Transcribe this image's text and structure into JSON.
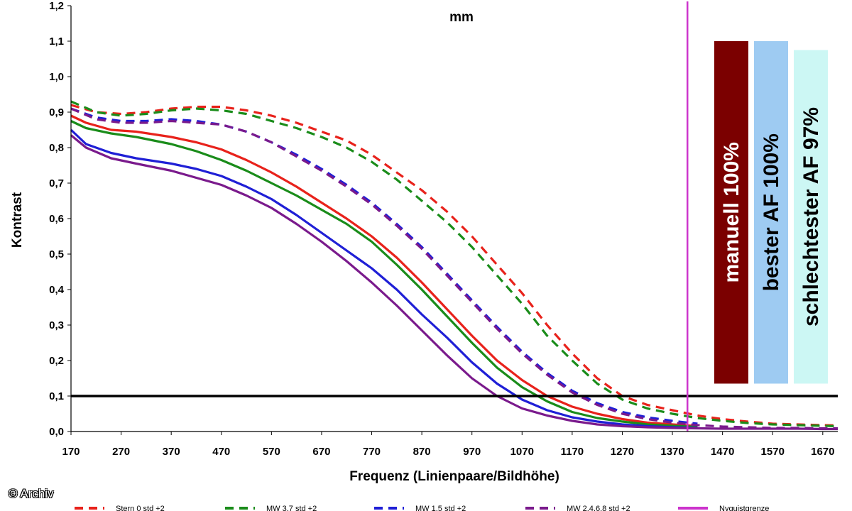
{
  "credit": "© Archiv",
  "chart_data": {
    "type": "line",
    "title": "mm",
    "xlabel": "Frequenz (Linienpaare/Bildhöhe)",
    "ylabel": "Kontrast",
    "xlim": [
      170,
      1700
    ],
    "ylim": [
      0.0,
      1.2
    ],
    "xticks": [
      "170",
      "270",
      "370",
      "470",
      "570",
      "670",
      "770",
      "870",
      "970",
      "1070",
      "1170",
      "1270",
      "1370",
      "1470",
      "1570",
      "1670"
    ],
    "yticks": [
      "0,0",
      "0,1",
      "0,2",
      "0,3",
      "0,4",
      "0,5",
      "0,6",
      "0,7",
      "0,8",
      "0,9",
      "1,0",
      "1,1",
      "1,2"
    ],
    "threshold": {
      "y": 0.1,
      "color": "#000000"
    },
    "nyquist": {
      "x": 1400,
      "color": "#cc33cc",
      "name": "Nyquistgrenze"
    },
    "series": [
      {
        "name": "Stern 0 std +2",
        "color": "#e8221b",
        "style": "solid",
        "x": [
          170,
          200,
          250,
          300,
          370,
          420,
          470,
          520,
          570,
          620,
          670,
          720,
          770,
          820,
          870,
          920,
          970,
          1020,
          1070,
          1120,
          1170,
          1220,
          1270,
          1320,
          1370,
          1420
        ],
        "y": [
          0.89,
          0.87,
          0.85,
          0.845,
          0.83,
          0.815,
          0.795,
          0.765,
          0.73,
          0.69,
          0.645,
          0.6,
          0.55,
          0.49,
          0.42,
          0.345,
          0.27,
          0.2,
          0.145,
          0.1,
          0.07,
          0.05,
          0.035,
          0.025,
          0.02,
          0.015
        ]
      },
      {
        "name": "Stern 0 std +2",
        "color": "#e8221b",
        "style": "dashed",
        "x": [
          170,
          220,
          270,
          320,
          370,
          420,
          470,
          520,
          570,
          620,
          670,
          720,
          770,
          820,
          870,
          920,
          970,
          1020,
          1070,
          1120,
          1170,
          1220,
          1270,
          1320,
          1370,
          1420,
          1470,
          1520,
          1570,
          1620,
          1670,
          1700
        ],
        "y": [
          0.92,
          0.9,
          0.895,
          0.9,
          0.91,
          0.915,
          0.915,
          0.905,
          0.89,
          0.87,
          0.845,
          0.82,
          0.78,
          0.73,
          0.68,
          0.62,
          0.55,
          0.47,
          0.39,
          0.3,
          0.22,
          0.15,
          0.1,
          0.075,
          0.06,
          0.045,
          0.035,
          0.028,
          0.022,
          0.02,
          0.018,
          0.017
        ]
      },
      {
        "name": "MW 3,7 std +2",
        "color": "#1a8c1a",
        "style": "solid",
        "x": [
          170,
          200,
          250,
          300,
          370,
          420,
          470,
          520,
          570,
          620,
          670,
          720,
          770,
          820,
          870,
          920,
          970,
          1020,
          1070,
          1120,
          1170,
          1220,
          1270,
          1320,
          1370,
          1420
        ],
        "y": [
          0.875,
          0.855,
          0.84,
          0.83,
          0.81,
          0.79,
          0.765,
          0.735,
          0.7,
          0.665,
          0.625,
          0.585,
          0.535,
          0.47,
          0.4,
          0.325,
          0.25,
          0.18,
          0.125,
          0.085,
          0.055,
          0.038,
          0.028,
          0.02,
          0.016,
          0.013
        ]
      },
      {
        "name": "MW 3,7 std +2",
        "color": "#1a8c1a",
        "style": "dashed",
        "x": [
          170,
          220,
          270,
          320,
          370,
          420,
          470,
          520,
          570,
          620,
          670,
          720,
          770,
          820,
          870,
          920,
          970,
          1020,
          1070,
          1120,
          1170,
          1220,
          1270,
          1320,
          1370,
          1420,
          1470,
          1520,
          1570,
          1620,
          1670,
          1700
        ],
        "y": [
          0.93,
          0.9,
          0.89,
          0.895,
          0.905,
          0.91,
          0.905,
          0.895,
          0.875,
          0.855,
          0.83,
          0.8,
          0.76,
          0.71,
          0.65,
          0.59,
          0.52,
          0.44,
          0.36,
          0.27,
          0.2,
          0.135,
          0.09,
          0.065,
          0.05,
          0.038,
          0.03,
          0.024,
          0.02,
          0.018,
          0.016,
          0.015
        ]
      },
      {
        "name": "MW 1,5 std +2",
        "color": "#1f1fd6",
        "style": "solid",
        "x": [
          170,
          200,
          250,
          300,
          370,
          420,
          470,
          520,
          570,
          620,
          670,
          720,
          770,
          820,
          870,
          920,
          970,
          1020,
          1070,
          1120,
          1170,
          1220,
          1270,
          1320,
          1370,
          1420
        ],
        "y": [
          0.85,
          0.81,
          0.785,
          0.77,
          0.755,
          0.74,
          0.72,
          0.69,
          0.655,
          0.61,
          0.56,
          0.51,
          0.46,
          0.4,
          0.33,
          0.265,
          0.195,
          0.135,
          0.09,
          0.06,
          0.04,
          0.028,
          0.02,
          0.015,
          0.012,
          0.01
        ]
      },
      {
        "name": "MW 1,5 std +2",
        "color": "#1f1fd6",
        "style": "dashed",
        "x": [
          170,
          220,
          270,
          320,
          370,
          420,
          470,
          520,
          570,
          620,
          670,
          720,
          770,
          820,
          870,
          920,
          970,
          1020,
          1070,
          1120,
          1170,
          1220,
          1270,
          1320,
          1370,
          1420
        ],
        "y": [
          0.91,
          0.885,
          0.875,
          0.875,
          0.88,
          0.875,
          0.865,
          0.845,
          0.815,
          0.78,
          0.74,
          0.695,
          0.645,
          0.585,
          0.52,
          0.445,
          0.37,
          0.295,
          0.225,
          0.165,
          0.115,
          0.08,
          0.055,
          0.04,
          0.03,
          0.022
        ]
      },
      {
        "name": "MW 2,4,6,8 std +2",
        "color": "#7a1a8c",
        "style": "solid",
        "x": [
          170,
          200,
          250,
          300,
          370,
          420,
          470,
          520,
          570,
          620,
          670,
          720,
          770,
          820,
          870,
          920,
          970,
          1020,
          1070,
          1120,
          1170,
          1220,
          1270,
          1320,
          1370,
          1420,
          1470,
          1520,
          1570,
          1620,
          1670,
          1700
        ],
        "y": [
          0.835,
          0.8,
          0.77,
          0.755,
          0.735,
          0.715,
          0.695,
          0.665,
          0.63,
          0.585,
          0.535,
          0.48,
          0.42,
          0.355,
          0.285,
          0.215,
          0.15,
          0.1,
          0.065,
          0.045,
          0.03,
          0.02,
          0.015,
          0.012,
          0.01,
          0.009,
          0.008,
          0.008,
          0.008,
          0.008,
          0.007,
          0.007
        ]
      },
      {
        "name": "MW 2,4,6,8 std +2",
        "color": "#7a1a8c",
        "style": "dashed",
        "x": [
          170,
          220,
          270,
          320,
          370,
          420,
          470,
          520,
          570,
          620,
          670,
          720,
          770,
          820,
          870,
          920,
          970,
          1020,
          1070,
          1120,
          1170,
          1220,
          1270,
          1320,
          1370,
          1420,
          1470,
          1520,
          1570,
          1620,
          1670,
          1700
        ],
        "y": [
          0.91,
          0.88,
          0.87,
          0.87,
          0.875,
          0.87,
          0.865,
          0.845,
          0.815,
          0.775,
          0.735,
          0.69,
          0.64,
          0.58,
          0.515,
          0.44,
          0.365,
          0.29,
          0.22,
          0.16,
          0.11,
          0.075,
          0.05,
          0.035,
          0.025,
          0.018,
          0.014,
          0.012,
          0.01,
          0.01,
          0.009,
          0.009
        ]
      }
    ],
    "bars": [
      {
        "label": "manuell 100%",
        "value": 1.1,
        "color": "#7b0000",
        "text_color": "light"
      },
      {
        "label": "bester AF 100%",
        "value": 1.1,
        "color": "#9ecbf2",
        "text_color": "dark"
      },
      {
        "label": "schlechtester AF 97%",
        "value": 1.075,
        "color": "#ccf7f4",
        "text_color": "dark"
      }
    ],
    "legend": [
      {
        "label": "Stern 0 std +2",
        "color": "#e8221b",
        "style": "dashed"
      },
      {
        "label": "MW 3,7 std +2",
        "color": "#1a8c1a",
        "style": "dashed"
      },
      {
        "label": "MW 1,5 std +2",
        "color": "#1f1fd6",
        "style": "dashed"
      },
      {
        "label": "MW 2,4,6,8 std +2",
        "color": "#7a1a8c",
        "style": "dashed"
      },
      {
        "label": "Nyquistgrenze",
        "color": "#cc33cc",
        "style": "solid"
      }
    ],
    "legend_position": "bottom"
  }
}
